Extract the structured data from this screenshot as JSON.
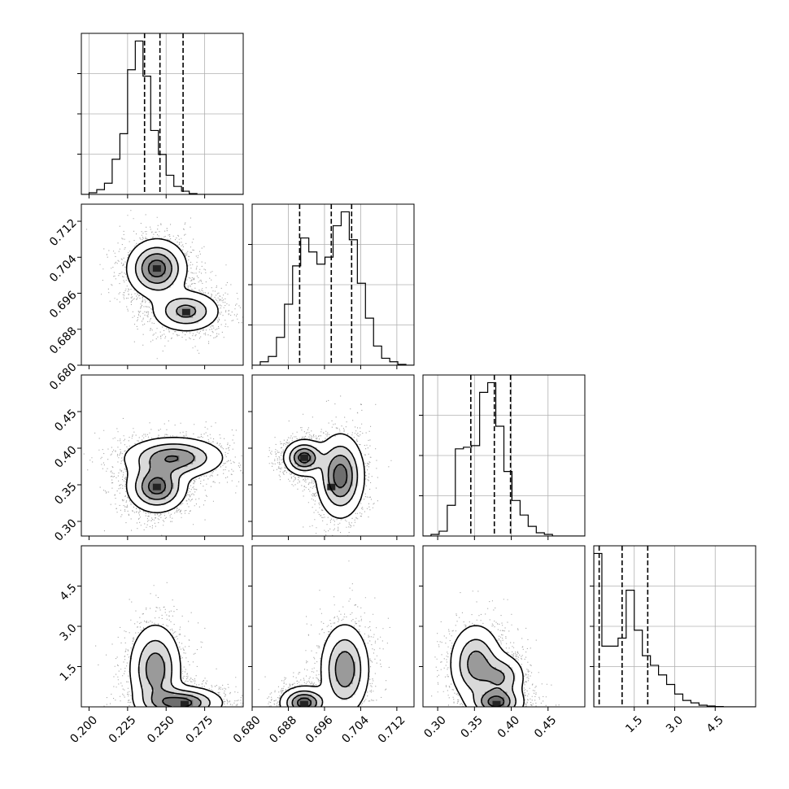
{
  "chart_data": {
    "type": "corner",
    "parameters": [
      {
        "id": "p0",
        "range": [
          0.195,
          0.3
        ],
        "ticks": [
          0.2,
          0.225,
          0.25,
          0.275
        ],
        "tick_labels": [
          "0.200",
          "0.225",
          "0.250",
          "0.275"
        ],
        "quantiles": [
          0.236,
          0.246,
          0.261
        ],
        "hist": {
          "min": 0.195,
          "step": 0.005,
          "counts": [
            0,
            1,
            3,
            7,
            22,
            38,
            78,
            96,
            74,
            40,
            25,
            12,
            5,
            2,
            0.5,
            0,
            0,
            0,
            0,
            0,
            0
          ]
        }
      },
      {
        "id": "p1",
        "range": [
          0.68,
          0.7158
        ],
        "ticks": [
          0.68,
          0.688,
          0.696,
          0.704,
          0.712
        ],
        "tick_labels": [
          "0.680",
          "0.688",
          "0.696",
          "0.704",
          "0.712"
        ],
        "quantiles": [
          0.6905,
          0.6975,
          0.702
        ],
        "hist": {
          "min": 0.68,
          "step": 0.00179,
          "counts": [
            0,
            2,
            5,
            16,
            35,
            57,
            73,
            65,
            58,
            62,
            80,
            88,
            72,
            47,
            27,
            11,
            4,
            2,
            0.5,
            0
          ]
        }
      },
      {
        "id": "p2",
        "range": [
          0.28,
          0.5
        ],
        "ticks": [
          0.3,
          0.35,
          0.4,
          0.45
        ],
        "tick_labels": [
          "0.30",
          "0.35",
          "0.40",
          "0.45"
        ],
        "quantiles": [
          0.345,
          0.377,
          0.399
        ],
        "hist": {
          "min": 0.28,
          "step": 0.011,
          "counts": [
            0,
            1,
            3,
            19,
            54,
            55,
            56,
            89,
            95,
            68,
            40,
            22,
            13,
            6,
            2,
            1,
            0,
            0,
            0,
            0
          ]
        }
      },
      {
        "id": "p3",
        "range": [
          0,
          6
        ],
        "ticks": [
          1.5,
          3.0,
          4.5
        ],
        "tick_labels": [
          "1.5",
          "3.0",
          "4.5"
        ],
        "quantiles": [
          0.2,
          1.05,
          2.0
        ],
        "hist": {
          "min": 0,
          "step": 0.3,
          "counts": [
            96,
            38,
            38,
            43,
            73,
            48,
            32,
            26,
            20,
            14,
            8,
            4,
            2.5,
            1,
            0.5,
            0.2,
            0,
            0,
            0,
            0
          ]
        }
      }
    ],
    "left_axis_ticks": {
      "p1": {
        "ticks": [
          0.68,
          0.688,
          0.696,
          0.704,
          0.712
        ],
        "tick_labels": [
          "0.680",
          "0.688",
          "0.696",
          "0.704",
          "0.712"
        ]
      },
      "p2": {
        "ticks": [
          0.3,
          0.35,
          0.4,
          0.45
        ],
        "tick_labels": [
          "0.30",
          "0.35",
          "0.40",
          "0.45"
        ]
      },
      "p3": {
        "ticks": [
          1.5,
          3.0,
          4.5
        ],
        "tick_labels": [
          "1.5",
          "3.0",
          "4.5"
        ]
      }
    },
    "pairs": [
      {
        "x": "p0",
        "y": "p1",
        "clusters": [
          {
            "center": [
              0.244,
              0.7015
            ],
            "sigma": [
              0.0095,
              0.0032
            ],
            "weight": 1.0
          },
          {
            "center": [
              0.263,
              0.692
            ],
            "sigma": [
              0.011,
              0.0023
            ],
            "weight": 0.7
          }
        ],
        "peaks": [
          [
            0.244,
            0.7015
          ],
          [
            0.263,
            0.6918
          ]
        ]
      },
      {
        "x": "p0",
        "y": "p2",
        "clusters": [
          {
            "center": [
              0.244,
              0.347
            ],
            "sigma": [
              0.0095,
              0.017
            ],
            "weight": 1.0
          },
          {
            "center": [
              0.255,
              0.387
            ],
            "sigma": [
              0.016,
              0.014
            ],
            "weight": 0.85
          }
        ],
        "peaks": [
          [
            0.244,
            0.347
          ]
        ]
      },
      {
        "x": "p1",
        "y": "p2",
        "clusters": [
          {
            "center": [
              0.6915,
              0.387
            ],
            "sigma": [
              0.0022,
              0.012
            ],
            "weight": 1.0
          },
          {
            "center": [
              0.6995,
              0.362
            ],
            "sigma": [
              0.0026,
              0.028
            ],
            "weight": 1.0
          }
        ],
        "peaks": [
          [
            0.6915,
            0.387
          ],
          [
            0.6975,
            0.347
          ]
        ]
      },
      {
        "x": "p0",
        "y": "p3",
        "clusters": [
          {
            "center": [
              0.243,
              1.4
            ],
            "sigma": [
              0.0085,
              0.85
            ],
            "weight": 0.8
          },
          {
            "center": [
              0.26,
              0.15
            ],
            "sigma": [
              0.013,
              0.3
            ],
            "weight": 1.0
          }
        ],
        "peaks": [
          [
            0.262,
            0.1
          ]
        ]
      },
      {
        "x": "p1",
        "y": "p3",
        "clusters": [
          {
            "center": [
              0.7005,
              1.4
            ],
            "sigma": [
              0.0027,
              0.85
            ],
            "weight": 0.8
          },
          {
            "center": [
              0.6915,
              0.15
            ],
            "sigma": [
              0.0026,
              0.3
            ],
            "weight": 1.0
          }
        ],
        "peaks": [
          [
            0.6915,
            0.1
          ]
        ]
      },
      {
        "x": "p2",
        "y": "p3",
        "clusters": [
          {
            "center": [
              0.352,
              1.6
            ],
            "sigma": [
              0.018,
              0.75
            ],
            "weight": 0.8
          },
          {
            "center": [
              0.388,
              1.1
            ],
            "sigma": [
              0.016,
              0.45
            ],
            "weight": 0.6
          },
          {
            "center": [
              0.38,
              0.15
            ],
            "sigma": [
              0.018,
              0.3
            ],
            "weight": 1.0
          }
        ],
        "peaks": [
          [
            0.38,
            0.1
          ]
        ]
      }
    ],
    "grid": true,
    "quantile_line_style": "dashed",
    "colors": {
      "line": "#000000",
      "grid": "#b0b0b0",
      "density": "#000000",
      "background": "#ffffff"
    }
  }
}
